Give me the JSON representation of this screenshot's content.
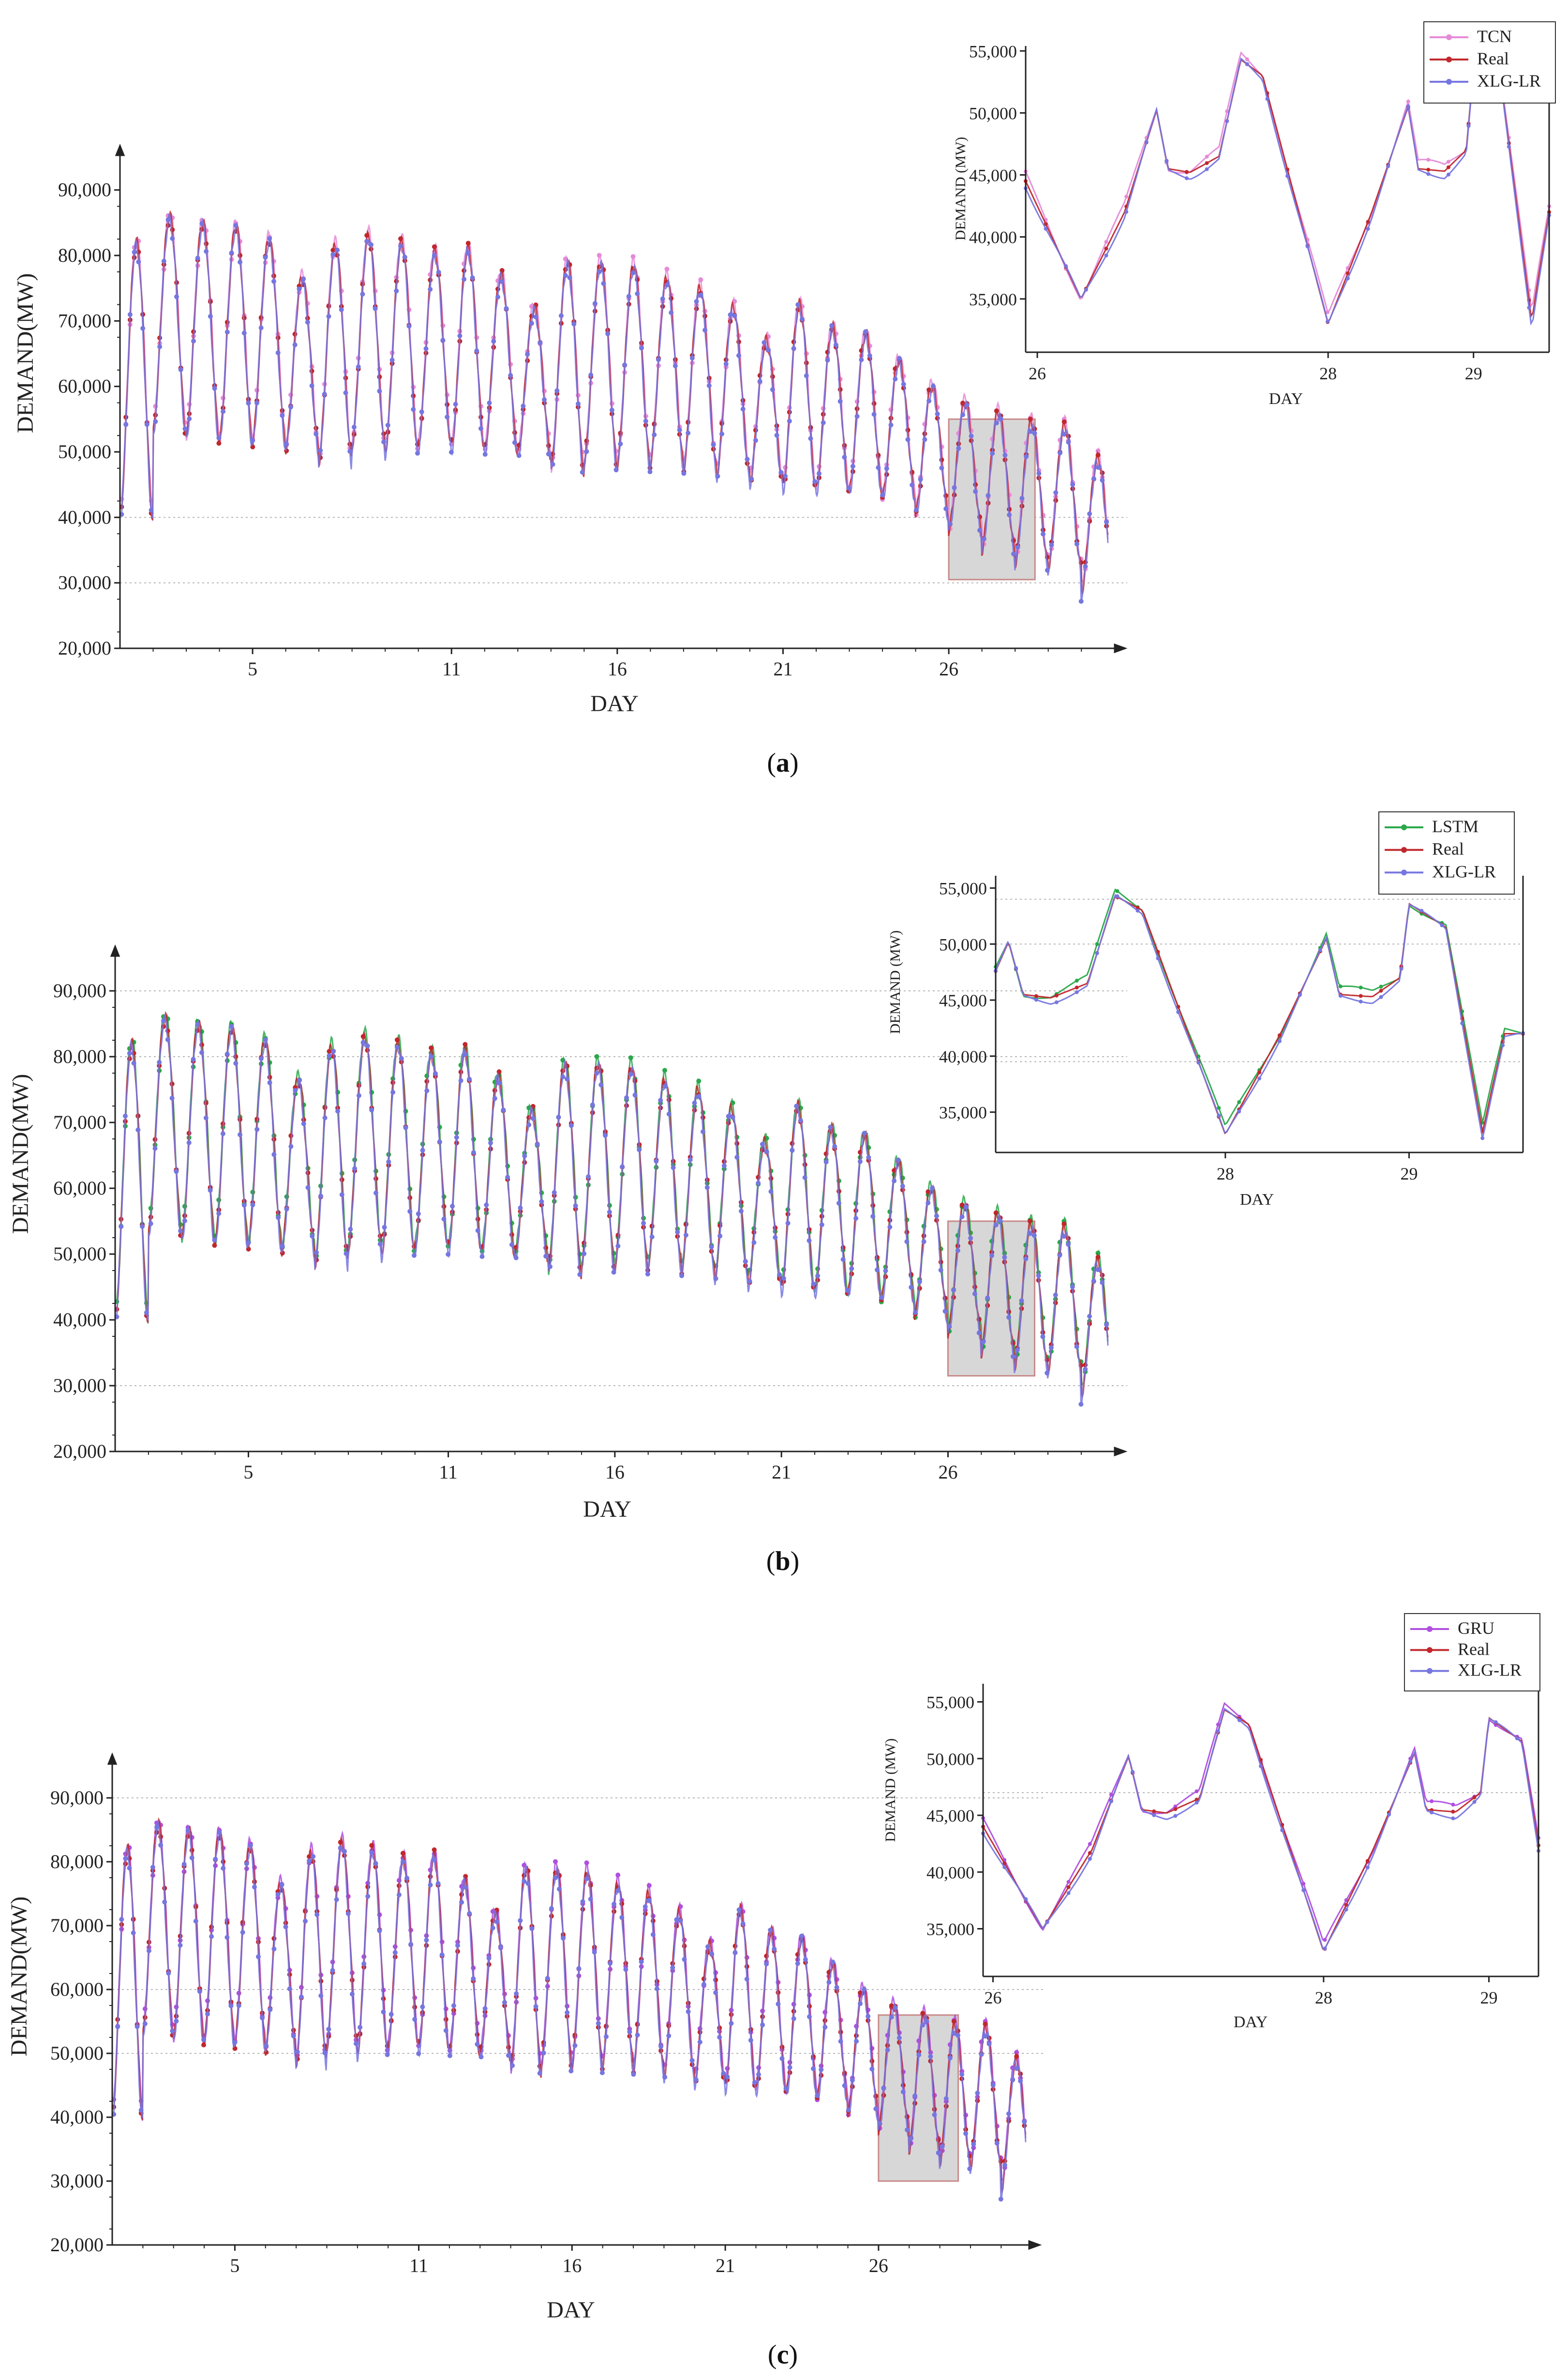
{
  "chart_data": [
    {
      "panel_label": "(a)",
      "panel_letter": "a",
      "main": {
        "type": "line",
        "xlabel": "DAY",
        "ylabel": "DEMAND(MW)",
        "xticks": [
          5,
          11,
          16,
          21,
          26
        ],
        "yticks": [
          20000,
          30000,
          40000,
          50000,
          60000,
          70000,
          80000,
          90000
        ],
        "ytick_labels": [
          "20,000",
          "30,000",
          "40,000",
          "50,000",
          "60,000",
          "70,000",
          "80,000",
          "90,000"
        ],
        "xlim": [
          1,
          30.8
        ],
        "ylim": [
          20000,
          95000
        ],
        "gridlines": [
          30000,
          40000
        ],
        "highlight": {
          "x": [
            26,
            28.6
          ],
          "y": [
            30500,
            55000
          ]
        },
        "series": [
          {
            "name": "TCN",
            "color": "#e68ad8",
            "style": "main"
          },
          {
            "name": "Real",
            "color": "#c0282d",
            "style": "main"
          },
          {
            "name": "XLG-LR",
            "color": "#7676e0",
            "style": "main"
          }
        ]
      },
      "inset": {
        "type": "line",
        "xlabel": "DAY",
        "ylabel": "DEMAND (MW)",
        "xticks": [
          26,
          28,
          29
        ],
        "yticks": [
          35000,
          40000,
          45000,
          50000,
          55000
        ],
        "ytick_labels": [
          "35,000",
          "40,000",
          "45,000",
          "50,000",
          "55,000"
        ],
        "xlim": [
          25.92,
          29.52
        ],
        "ylim": [
          30700,
          55400
        ],
        "gridlines": [],
        "legend": [
          "TCN",
          "Real",
          "XLG-LR"
        ],
        "series": [
          {
            "name": "TCN",
            "color": "#e68ad8"
          },
          {
            "name": "Real",
            "color": "#c0282d"
          },
          {
            "name": "XLG-LR",
            "color": "#7676e0"
          }
        ]
      }
    },
    {
      "panel_label": "(b)",
      "panel_letter": "b",
      "main": {
        "type": "line",
        "xlabel": "DAY",
        "ylabel": "DEMAND(MW)",
        "xticks": [
          5,
          11,
          16,
          21,
          26
        ],
        "yticks": [
          20000,
          30000,
          40000,
          50000,
          60000,
          70000,
          80000,
          90000
        ],
        "ytick_labels": [
          "20,000",
          "30,000",
          "40,000",
          "50,000",
          "60,000",
          "70,000",
          "80,000",
          "90,000"
        ],
        "xlim": [
          1,
          30.8
        ],
        "ylim": [
          20000,
          95000
        ],
        "gridlines": [
          30000,
          80000,
          90000
        ],
        "highlight": {
          "x": [
            26,
            28.6
          ],
          "y": [
            31500,
            55000
          ]
        },
        "series": [
          {
            "name": "LSTM",
            "color": "#2aa84a"
          },
          {
            "name": "Real",
            "color": "#c0282d"
          },
          {
            "name": "XLG-LR",
            "color": "#7676e0"
          }
        ]
      },
      "inset": {
        "type": "line",
        "xlabel": "DAY",
        "ylabel": "DEMAND (MW)",
        "xticks": [
          28,
          29
        ],
        "yticks": [
          35000,
          40000,
          45000,
          50000,
          55000
        ],
        "ytick_labels": [
          "35,000",
          "40,000",
          "45,000",
          "50,000",
          "55,000"
        ],
        "xlim": [
          26.75,
          29.62
        ],
        "ylim": [
          31400,
          56100
        ],
        "gridlines": [
          39500,
          50000,
          54000
        ],
        "legend": [
          "LSTM",
          "Real",
          "XLG-LR"
        ],
        "series": [
          {
            "name": "LSTM",
            "color": "#2aa84a"
          },
          {
            "name": "Real",
            "color": "#c0282d"
          },
          {
            "name": "XLG-LR",
            "color": "#7676e0"
          }
        ]
      }
    },
    {
      "panel_label": "(c)",
      "panel_letter": "c",
      "main": {
        "type": "line",
        "xlabel": "DAY",
        "ylabel": "DEMAND(MW)",
        "xticks": [
          5,
          11,
          16,
          21,
          26
        ],
        "yticks": [
          20000,
          30000,
          40000,
          50000,
          60000,
          70000,
          80000,
          90000
        ],
        "ytick_labels": [
          "20,000",
          "30,000",
          "40,000",
          "50,000",
          "60,000",
          "70,000",
          "80,000",
          "90,000"
        ],
        "xlim": [
          1,
          30.8
        ],
        "ylim": [
          20000,
          95000
        ],
        "gridlines": [
          50000,
          60000,
          90000
        ],
        "highlight": {
          "x": [
            26,
            28.6
          ],
          "y": [
            30000,
            56000
          ]
        },
        "series": [
          {
            "name": "GRU",
            "color": "#b04fe0"
          },
          {
            "name": "Real",
            "color": "#c0282d"
          },
          {
            "name": "XLG-LR",
            "color": "#7676e0"
          }
        ]
      },
      "inset": {
        "type": "line",
        "xlabel": "DAY",
        "ylabel": "DEMAND (MW)",
        "xticks": [
          26,
          28,
          29
        ],
        "yticks": [
          35000,
          40000,
          45000,
          50000,
          55000
        ],
        "ytick_labels": [
          "35,000",
          "40,000",
          "45,000",
          "50,000",
          "55,000"
        ],
        "xlim": [
          25.94,
          29.3
        ],
        "ylim": [
          30800,
          56600
        ],
        "gridlines": [
          47000
        ],
        "legend": [
          "GRU",
          "Real",
          "XLG-LR"
        ],
        "series": [
          {
            "name": "GRU",
            "color": "#b04fe0"
          },
          {
            "name": "Real",
            "color": "#c0282d"
          },
          {
            "name": "XLG-LR",
            "color": "#7676e0"
          }
        ]
      }
    }
  ],
  "daily_profile": {
    "day": [
      1,
      2,
      3,
      4,
      5,
      6,
      7,
      8,
      9,
      10,
      11,
      12,
      13,
      14,
      15,
      16,
      17,
      18,
      19,
      20,
      21,
      22,
      23,
      24,
      25,
      26,
      27,
      28,
      29,
      30
    ],
    "peak_mw": [
      82000,
      86000,
      85000,
      84500,
      82500,
      76500,
      81500,
      83000,
      82000,
      80500,
      81000,
      77000,
      72000,
      79000,
      79000,
      78500,
      76500,
      75000,
      72000,
      67000,
      72500,
      69000,
      68000,
      64000,
      60000,
      57500,
      56000,
      54500,
      54000,
      49000
    ],
    "trough_mw": [
      39500,
      53000,
      52000,
      51500,
      51500,
      50500,
      48500,
      51000,
      50000,
      51000,
      50500,
      50000,
      49500,
      47000,
      48000,
      48000,
      48500,
      47500,
      46500,
      45500,
      44500,
      44000,
      44000,
      43000,
      40500,
      38000,
      35000,
      33000,
      32500,
      28500
    ]
  },
  "inset_profile": {
    "time_day": [
      25.92,
      26.0,
      26.3,
      26.6,
      26.82,
      26.9,
      27.05,
      27.25,
      27.4,
      27.55,
      28.0,
      28.3,
      28.55,
      28.62,
      28.8,
      28.95,
      29.0,
      29.2,
      29.4,
      29.45,
      29.52
    ],
    "real_mw": [
      44500,
      42500,
      35000,
      42000,
      50200,
      45500,
      45200,
      46500,
      54300,
      53000,
      33000,
      42000,
      50500,
      45500,
      45300,
      47000,
      53600,
      51500,
      33200,
      37000,
      42000
    ]
  }
}
